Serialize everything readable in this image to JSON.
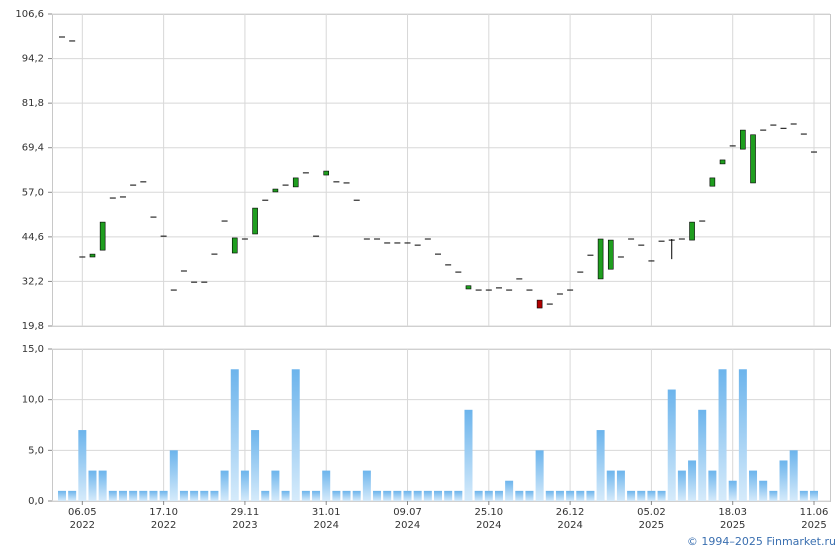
{
  "chart_data": [
    {
      "type": "candlestick",
      "up_color": "#1f9e1f",
      "down_color": "#b00000",
      "flat_color": "#000000",
      "ylim": [
        19.8,
        106.6
      ],
      "yticks": [
        {
          "value": 19.8,
          "label": "19,8"
        },
        {
          "value": 32.2,
          "label": "32,2"
        },
        {
          "value": 44.6,
          "label": "44,6"
        },
        {
          "value": 57.0,
          "label": "57,0"
        },
        {
          "value": 69.4,
          "label": "69,4"
        },
        {
          "value": 81.8,
          "label": "81,8"
        },
        {
          "value": 94.2,
          "label": "94,2"
        },
        {
          "value": 106.6,
          "label": "106,6"
        }
      ],
      "grid": true,
      "open": [
        100.2,
        99.1,
        39.0,
        39.0,
        40.9,
        55.4,
        55.7,
        59.0,
        59.9,
        50.1,
        44.8,
        29.8,
        35.1,
        32.0,
        32.0,
        39.8,
        49.0,
        40.1,
        44.0,
        45.4,
        54.8,
        57.1,
        59.0,
        58.5,
        62.4,
        44.8,
        61.8,
        59.9,
        59.6,
        54.8,
        44.0,
        44.0,
        42.9,
        42.9,
        42.9,
        42.3,
        44.0,
        39.8,
        36.8,
        34.8,
        30.1,
        29.8,
        29.8,
        30.4,
        29.8,
        32.9,
        29.8,
        27.0,
        25.9,
        28.7,
        29.8,
        34.8,
        39.5,
        32.9,
        35.6,
        39.0,
        44.0,
        42.3,
        37.9,
        43.4,
        43.7,
        44.0,
        43.7,
        49.0,
        58.7,
        64.9,
        69.9,
        69.0,
        59.6,
        74.3,
        75.7,
        74.8,
        76.0,
        73.2,
        68.2
      ],
      "high": [
        100.2,
        99.1,
        39.0,
        39.8,
        48.7,
        55.4,
        55.7,
        59.0,
        59.9,
        50.1,
        44.8,
        29.8,
        35.1,
        32.0,
        32.0,
        39.8,
        49.0,
        44.3,
        44.0,
        52.6,
        54.8,
        57.9,
        59.0,
        61.0,
        62.4,
        44.8,
        62.9,
        59.9,
        59.6,
        54.8,
        44.0,
        44.0,
        42.9,
        42.9,
        42.9,
        42.3,
        44.0,
        39.8,
        36.8,
        34.8,
        31.0,
        29.8,
        29.8,
        30.4,
        29.8,
        32.9,
        29.8,
        27.0,
        25.9,
        28.7,
        29.8,
        34.8,
        39.5,
        44.0,
        43.7,
        39.0,
        44.0,
        42.3,
        37.9,
        43.4,
        44.0,
        44.0,
        48.7,
        49.0,
        61.0,
        66.0,
        69.9,
        74.3,
        73.0,
        74.3,
        75.7,
        74.8,
        76.0,
        73.2,
        68.2
      ],
      "low": [
        100.2,
        99.1,
        39.0,
        39.0,
        40.9,
        55.4,
        55.7,
        59.0,
        59.9,
        50.1,
        44.8,
        29.8,
        35.1,
        32.0,
        32.0,
        39.8,
        49.0,
        40.1,
        44.0,
        45.4,
        54.8,
        57.1,
        59.0,
        58.5,
        62.4,
        44.8,
        61.8,
        59.9,
        59.6,
        54.8,
        44.0,
        44.0,
        42.9,
        42.9,
        42.9,
        42.3,
        44.0,
        39.8,
        36.8,
        34.8,
        30.1,
        29.8,
        29.8,
        30.4,
        29.8,
        32.9,
        29.8,
        24.8,
        25.9,
        28.7,
        29.8,
        34.8,
        39.5,
        32.9,
        35.6,
        39.0,
        44.0,
        42.3,
        37.9,
        43.4,
        38.4,
        44.0,
        43.7,
        49.0,
        58.7,
        64.9,
        69.9,
        69.0,
        59.6,
        74.3,
        75.7,
        74.8,
        76.0,
        73.2,
        68.2
      ],
      "close": [
        100.2,
        99.1,
        39.0,
        39.8,
        48.7,
        55.4,
        55.7,
        59.0,
        59.9,
        50.1,
        44.8,
        29.8,
        35.1,
        32.0,
        32.0,
        39.8,
        49.0,
        44.3,
        44.0,
        52.6,
        54.8,
        57.9,
        59.0,
        61.0,
        62.4,
        44.8,
        62.9,
        59.9,
        59.6,
        54.8,
        44.0,
        44.0,
        42.9,
        42.9,
        42.9,
        42.3,
        44.0,
        39.8,
        36.8,
        34.8,
        31.0,
        29.8,
        29.8,
        30.4,
        29.8,
        32.9,
        29.8,
        24.8,
        25.9,
        28.7,
        29.8,
        34.8,
        39.5,
        44.0,
        43.7,
        39.0,
        44.0,
        42.3,
        37.9,
        43.4,
        43.7,
        44.0,
        48.7,
        49.0,
        61.0,
        66.0,
        69.9,
        74.3,
        73.0,
        74.3,
        75.7,
        74.8,
        76.0,
        73.2,
        68.2
      ]
    },
    {
      "type": "bar",
      "categories": [
        null,
        null,
        "06.05",
        null,
        null,
        null,
        null,
        null,
        null,
        null,
        "17.10",
        null,
        null,
        null,
        null,
        null,
        null,
        null,
        "29.11",
        null,
        null,
        null,
        null,
        null,
        null,
        null,
        "31.01",
        null,
        null,
        null,
        null,
        null,
        null,
        null,
        "09.07",
        null,
        null,
        null,
        null,
        null,
        null,
        null,
        "25.10",
        null,
        null,
        null,
        null,
        null,
        null,
        null,
        "26.12",
        null,
        null,
        null,
        null,
        null,
        null,
        null,
        "05.02",
        null,
        null,
        null,
        null,
        null,
        null,
        null,
        "18.03",
        null,
        null,
        null,
        null,
        null,
        null,
        null,
        "11.06"
      ],
      "category_years": [
        null,
        null,
        "2022",
        null,
        null,
        null,
        null,
        null,
        null,
        null,
        "2022",
        null,
        null,
        null,
        null,
        null,
        null,
        null,
        "2023",
        null,
        null,
        null,
        null,
        null,
        null,
        null,
        "2024",
        null,
        null,
        null,
        null,
        null,
        null,
        null,
        "2024",
        null,
        null,
        null,
        null,
        null,
        null,
        null,
        "2024",
        null,
        null,
        null,
        null,
        null,
        null,
        null,
        "2024",
        null,
        null,
        null,
        null,
        null,
        null,
        null,
        "2025",
        null,
        null,
        null,
        null,
        null,
        null,
        null,
        "2025",
        null,
        null,
        null,
        null,
        null,
        null,
        null,
        "2025"
      ],
      "values": [
        1,
        1,
        7,
        3,
        3,
        1,
        1,
        1,
        1,
        1,
        1,
        5,
        1,
        1,
        1,
        1,
        3,
        13,
        3,
        7,
        1,
        3,
        1,
        13,
        1,
        1,
        3,
        1,
        1,
        1,
        3,
        1,
        1,
        1,
        1,
        1,
        1,
        1,
        1,
        1,
        9,
        1,
        1,
        1,
        2,
        1,
        1,
        5,
        1,
        1,
        1,
        1,
        1,
        7,
        3,
        3,
        1,
        1,
        1,
        1,
        11,
        3,
        4,
        9,
        3,
        13,
        2,
        13,
        3,
        2,
        1,
        4,
        5,
        1,
        1
      ],
      "color": "#6cb4ec",
      "ylim": [
        0,
        15
      ],
      "yticks": [
        {
          "value": 0,
          "label": "0,0"
        },
        {
          "value": 5,
          "label": "5,0"
        },
        {
          "value": 10,
          "label": "10,0"
        },
        {
          "value": 15,
          "label": "15,0"
        }
      ],
      "grid": true
    }
  ],
  "footer": "© 1994–2025 Finmarket.ru"
}
